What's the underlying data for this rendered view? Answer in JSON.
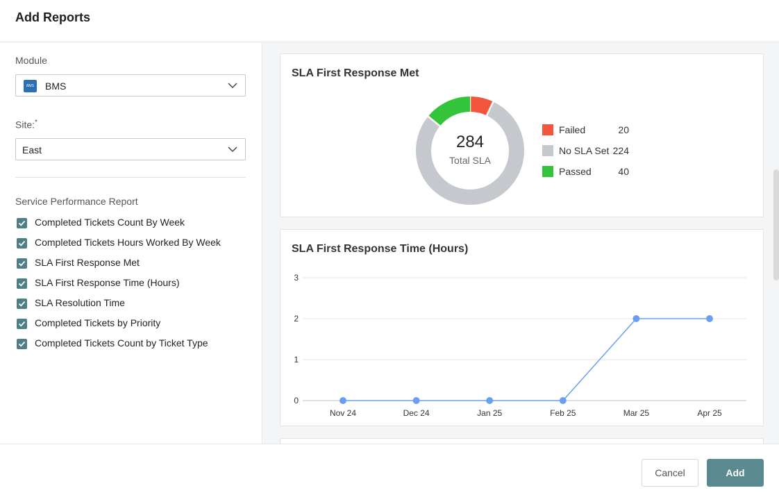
{
  "header": {
    "title": "Add Reports"
  },
  "form": {
    "module_label": "Module",
    "module_value": "BMS",
    "module_icon_text": "BMS",
    "site_label": "Site:",
    "site_required": "*",
    "site_value": "East",
    "section_title": "Service Performance Report",
    "reports": [
      {
        "label": "Completed Tickets Count By Week",
        "checked": true
      },
      {
        "label": "Completed Tickets Hours Worked By Week",
        "checked": true
      },
      {
        "label": "SLA First Response Met",
        "checked": true
      },
      {
        "label": "SLA First Response Time (Hours)",
        "checked": true
      },
      {
        "label": "SLA Resolution Time",
        "checked": true
      },
      {
        "label": "Completed Tickets by Priority",
        "checked": true
      },
      {
        "label": "Completed Tickets Count by Ticket Type",
        "checked": true
      }
    ]
  },
  "chart_data": [
    {
      "type": "pie",
      "title": "SLA First Response Met",
      "total_value": "284",
      "total_label": "Total SLA",
      "legend_position": "right",
      "slices": [
        {
          "name": "Failed",
          "value": 20,
          "color": "#f4533c"
        },
        {
          "name": "No SLA Set",
          "value": 224,
          "color": "#c5c8cc"
        },
        {
          "name": "Passed",
          "value": 40,
          "color": "#34c43c"
        }
      ]
    },
    {
      "type": "line",
      "title": "SLA First Response Time (Hours)",
      "categories": [
        "Nov 24",
        "Dec 24",
        "Jan 25",
        "Feb 25",
        "Mar 25",
        "Apr 25"
      ],
      "values": [
        0,
        0,
        0,
        0,
        2,
        2
      ],
      "yticks": [
        "0",
        "1",
        "2",
        "3"
      ],
      "ylim": [
        0,
        3
      ],
      "grid": true,
      "color": "#6a9ef0"
    }
  ],
  "footer": {
    "cancel_label": "Cancel",
    "add_label": "Add"
  }
}
